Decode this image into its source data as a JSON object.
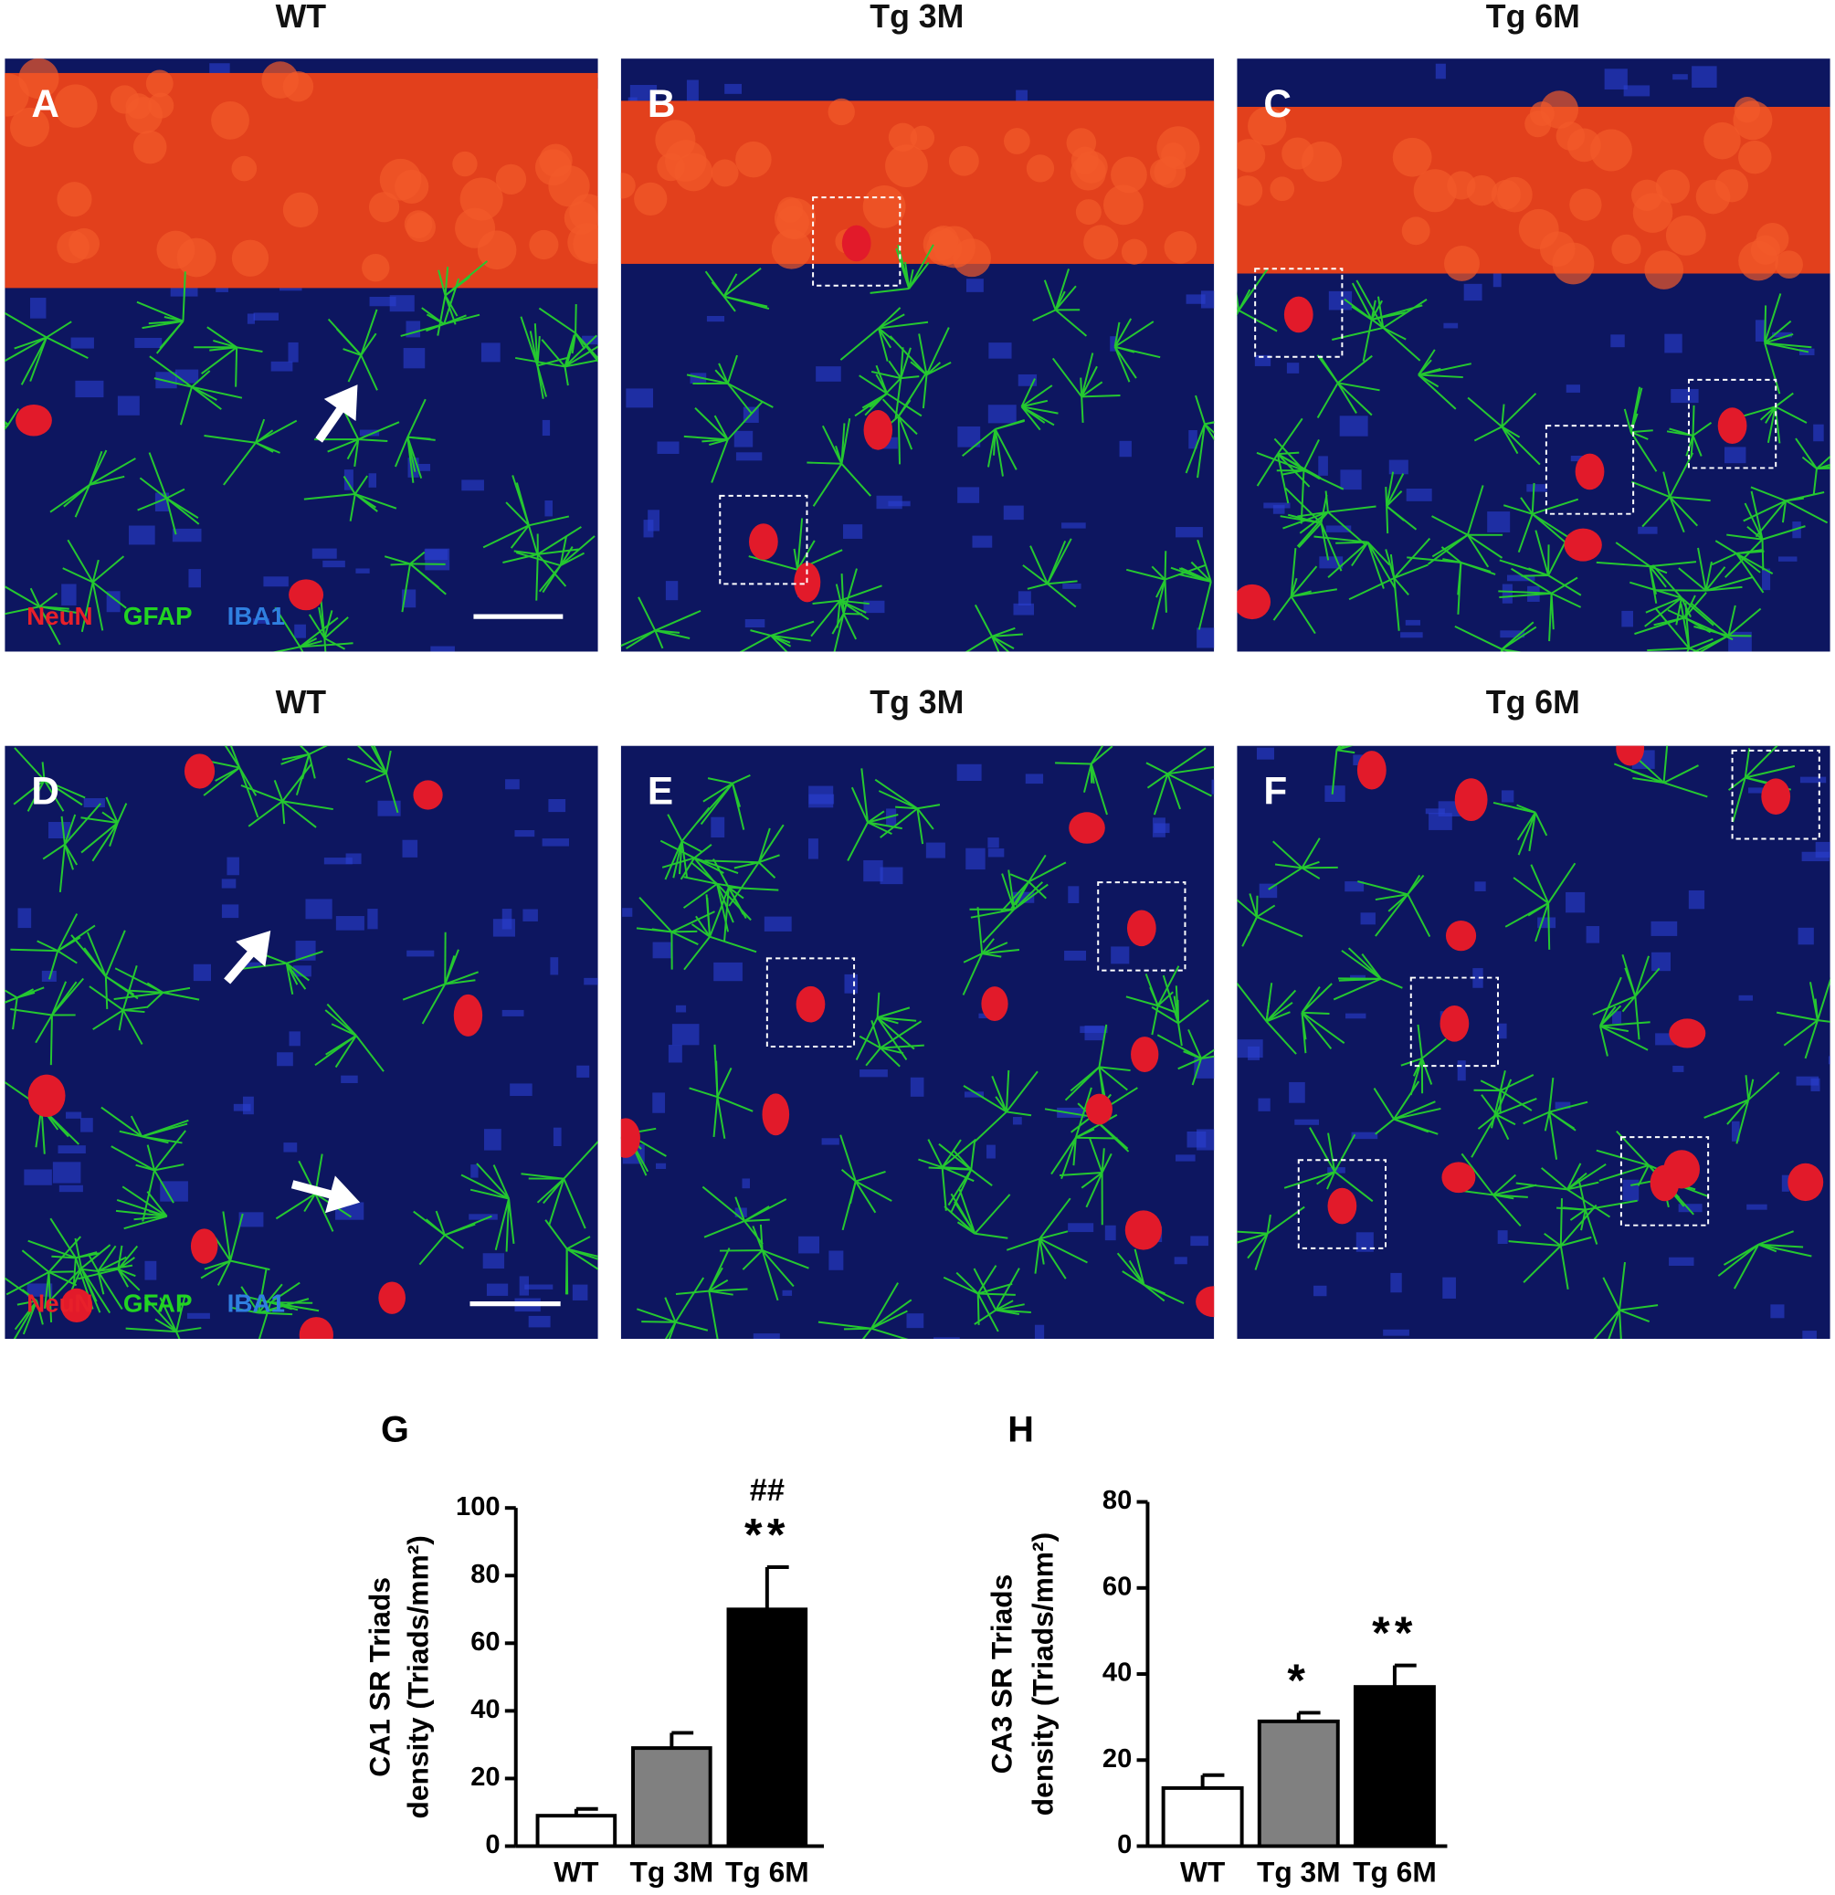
{
  "panels": [
    {
      "letter": "A",
      "heading": "WT"
    },
    {
      "letter": "B",
      "heading": "Tg 3M"
    },
    {
      "letter": "C",
      "heading": "Tg 6M"
    },
    {
      "letter": "D",
      "heading": "WT"
    },
    {
      "letter": "E",
      "heading": "Tg 3M"
    },
    {
      "letter": "F",
      "heading": "Tg 6M"
    }
  ],
  "stain_legend": [
    {
      "text": "NeuN",
      "color": "#e8202a"
    },
    {
      "text": "GFAP",
      "color": "#22d422"
    },
    {
      "text": "IBA1",
      "color": "#2f7fe0"
    }
  ],
  "chart_data": [
    {
      "type": "bar",
      "title": "G",
      "ylabel": [
        "CA1 SR  Triads",
        "density (Triads/mm²)"
      ],
      "categories": [
        "WT",
        "Tg 3M",
        "Tg 6M"
      ],
      "values": [
        9,
        29,
        70
      ],
      "errors": [
        2,
        4.5,
        12.5
      ],
      "colors": [
        "#ffffff",
        "#808080",
        "#000000"
      ],
      "annotations": [
        [],
        [],
        [
          "##",
          "**"
        ]
      ],
      "ylim": [
        0,
        100
      ],
      "yticks": [
        0,
        20,
        40,
        60,
        80,
        100
      ]
    },
    {
      "type": "bar",
      "title": "H",
      "ylabel": [
        "CA3 SR  Triads",
        "density (Triads/mm²)"
      ],
      "categories": [
        "WT",
        "Tg 3M",
        "Tg 6M"
      ],
      "values": [
        13.5,
        29,
        37
      ],
      "errors": [
        3,
        2,
        5
      ],
      "colors": [
        "#ffffff",
        "#808080",
        "#000000"
      ],
      "annotations": [
        [],
        [
          "*"
        ],
        [
          "**"
        ]
      ],
      "ylim": [
        0,
        80
      ],
      "yticks": [
        0,
        20,
        40,
        60,
        80
      ]
    }
  ]
}
